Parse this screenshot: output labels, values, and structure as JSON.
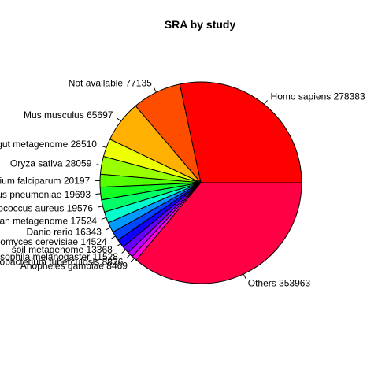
{
  "chart_data": {
    "type": "pie",
    "title": "SRA by study",
    "slices": [
      {
        "label": "Homo sapiens",
        "value": 278383,
        "color": "#FF0000"
      },
      {
        "label": "Not available",
        "value": 77135,
        "color": "#FF4D00"
      },
      {
        "label": "Mus musculus",
        "value": 65697,
        "color": "#FFB000"
      },
      {
        "label": "human gut metagenome",
        "value": 28510,
        "color": "#EEFF00"
      },
      {
        "label": "Oryza sativa",
        "value": 28059,
        "color": "#99FF00"
      },
      {
        "label": "Plasmodium falciparum",
        "value": 20197,
        "color": "#55FF00"
      },
      {
        "label": "Streptococcus pneumoniae",
        "value": 19693,
        "color": "#11FF22"
      },
      {
        "label": "Staphylococcus aureus",
        "value": 19576,
        "color": "#00FF66"
      },
      {
        "label": "human metagenome",
        "value": 17524,
        "color": "#00FFCC"
      },
      {
        "label": "Danio rerio",
        "value": 16343,
        "color": "#0099FF"
      },
      {
        "label": "Saccharomyces cerevisiae",
        "value": 14524,
        "color": "#0044FF"
      },
      {
        "label": "soil metagenome",
        "value": 13368,
        "color": "#1100FF"
      },
      {
        "label": "Drosophila melanogaster",
        "value": 11528,
        "color": "#6600FF"
      },
      {
        "label": "Mycobacterium tuberculosis",
        "value": 8836,
        "color": "#BB00FF"
      },
      {
        "label": "Anopheles gambiae",
        "value": 8469,
        "color": "#FF00DD"
      },
      {
        "label": "Others",
        "value": 353963,
        "color": "#FF0044"
      }
    ]
  }
}
